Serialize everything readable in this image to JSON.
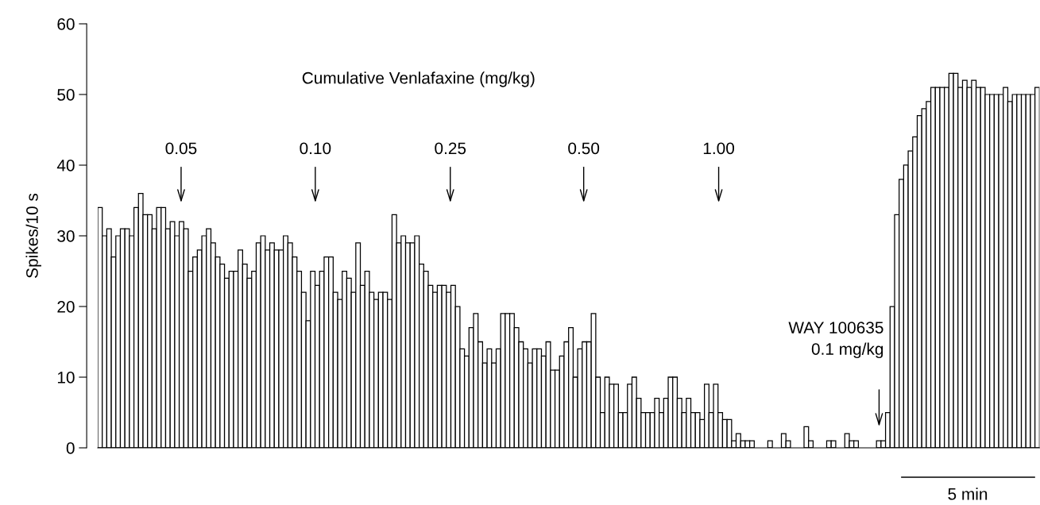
{
  "chart_data": {
    "type": "bar",
    "ylabel": "Spikes/10 s",
    "categories": [
      null,
      null,
      null,
      null,
      null,
      null,
      null,
      null,
      null,
      null,
      null,
      null,
      null,
      null,
      null,
      null,
      null,
      null,
      null,
      null,
      null,
      null,
      null,
      null,
      null,
      null,
      null,
      null,
      null,
      null,
      null,
      null,
      null,
      null,
      null,
      null,
      null,
      null,
      null,
      null,
      null,
      null,
      null,
      null,
      null,
      null,
      null,
      null,
      null,
      null,
      null,
      null,
      null,
      null,
      null,
      null,
      null,
      null,
      null,
      null,
      null,
      null,
      null,
      null,
      null,
      null,
      null,
      null,
      null,
      null,
      null,
      null,
      null,
      null,
      null,
      null,
      null,
      null,
      null,
      null,
      null,
      null,
      null,
      null,
      null,
      null,
      null,
      null,
      null,
      null,
      null,
      null,
      null,
      null,
      null,
      null,
      null,
      null,
      null,
      null,
      null,
      null,
      null,
      null,
      null,
      null,
      null,
      null,
      null,
      null,
      null,
      null,
      null,
      null,
      null,
      null,
      null,
      null,
      null,
      null,
      null,
      null,
      null,
      null,
      null,
      null,
      null,
      null,
      null,
      null,
      null,
      null,
      null,
      null,
      null,
      null,
      null,
      null,
      null,
      null,
      null,
      null,
      null,
      null,
      null,
      null,
      null,
      null,
      null,
      null,
      null,
      null,
      null,
      null,
      null,
      null,
      null,
      null,
      null,
      null,
      null,
      null,
      null,
      null,
      null,
      null,
      null,
      null,
      null,
      null,
      null,
      null,
      null,
      null,
      null,
      null,
      null,
      null,
      null,
      null,
      null,
      null,
      null,
      null,
      null,
      null,
      null,
      null,
      null,
      null,
      null,
      null,
      null,
      null,
      null,
      null,
      null,
      null,
      null,
      null,
      null,
      null,
      null,
      null,
      null,
      null,
      null,
      null
    ],
    "values": [
      34,
      30,
      31,
      27,
      30,
      31,
      31,
      30,
      34,
      36,
      33,
      33,
      31,
      34,
      34,
      31,
      32,
      30,
      32,
      31,
      25,
      27,
      28,
      30,
      31,
      29,
      27,
      26,
      24,
      25,
      25,
      28,
      26,
      24,
      25,
      29,
      30,
      28,
      29,
      28,
      28,
      30,
      29,
      27,
      25,
      22,
      18,
      25,
      23,
      25,
      27,
      27,
      22,
      21,
      25,
      24,
      22,
      29,
      23,
      25,
      22,
      21,
      22,
      22,
      21,
      33,
      29,
      30,
      29,
      29,
      30,
      26,
      25,
      23,
      22,
      23,
      23,
      22,
      23,
      20,
      14,
      13,
      17,
      19,
      15,
      12,
      14,
      12,
      14,
      19,
      19,
      19,
      17,
      15,
      14,
      12,
      14,
      14,
      13,
      15,
      11,
      11,
      13,
      15,
      17,
      10,
      14,
      15,
      15,
      19,
      10,
      5,
      10,
      9,
      9,
      5,
      5,
      9,
      10,
      7,
      5,
      5,
      5,
      7,
      5,
      7,
      10,
      10,
      7,
      5,
      7,
      5,
      5,
      4,
      9,
      5,
      9,
      5,
      4,
      4,
      1,
      2,
      1,
      1,
      1,
      0,
      0,
      0,
      1,
      0,
      0,
      2,
      1,
      0,
      0,
      0,
      3,
      1,
      0,
      0,
      0,
      1,
      1,
      0,
      0,
      2,
      1,
      1,
      0,
      0,
      0,
      0,
      1,
      1,
      5,
      20,
      33,
      38,
      40,
      42,
      44,
      47,
      48,
      49,
      51,
      51,
      51,
      51,
      53,
      53,
      51,
      52,
      51,
      52,
      51,
      51,
      50,
      50,
      50,
      50,
      51,
      49,
      50,
      50,
      50,
      50,
      50,
      51
    ],
    "color": "#ffffff",
    "ylim": [
      0,
      60
    ],
    "yticks": [
      0,
      10,
      20,
      30,
      40,
      50,
      60
    ],
    "annotations": [
      "Cumulative Venlafaxine (mg/kg)",
      "0.05",
      "0.10",
      "0.25",
      "0.50",
      "1.00",
      "WAY 100635\n0.1 mg/kg",
      "5 min"
    ]
  }
}
